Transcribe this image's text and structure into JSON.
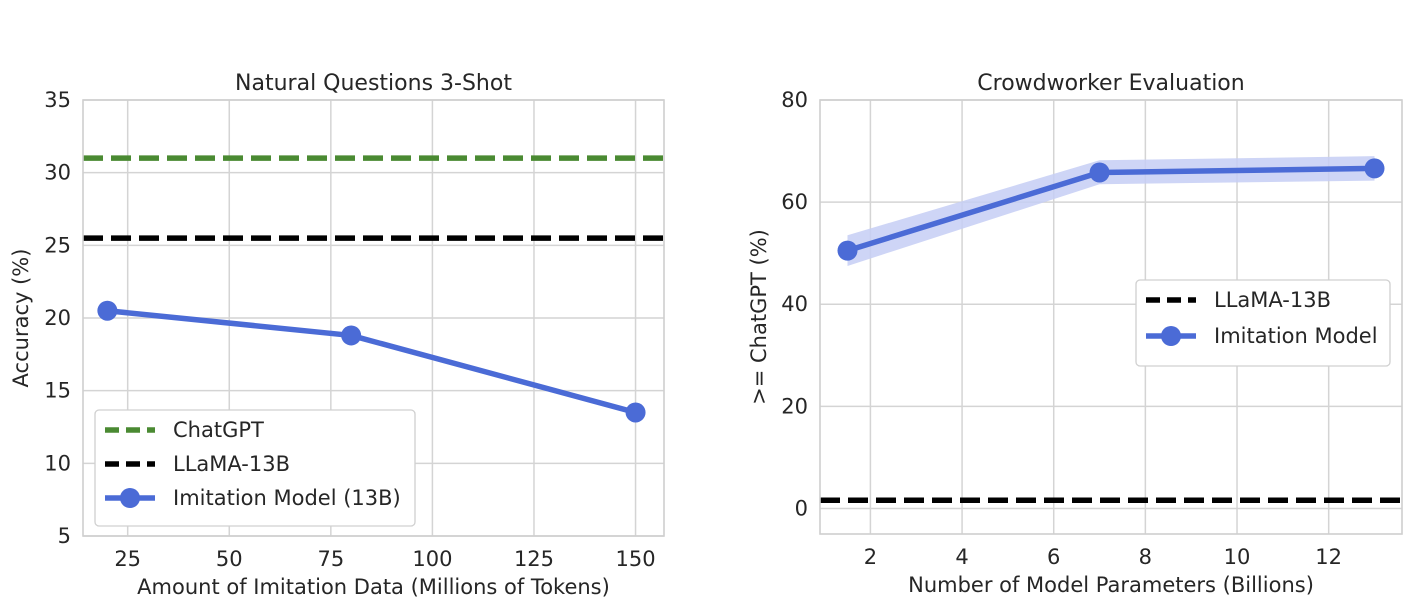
{
  "chart_data": [
    {
      "type": "line",
      "title": "Natural Questions 3-Shot",
      "xlabel": "Amount of Imitation Data (Millions of Tokens)",
      "ylabel": "Accuracy (%)",
      "xlim": [
        14,
        157
      ],
      "ylim": [
        5,
        35
      ],
      "xticks": [
        25,
        50,
        75,
        100,
        125,
        150
      ],
      "yticks": [
        5,
        10,
        15,
        20,
        25,
        30,
        35
      ],
      "grid": true,
      "legend_position": "lower-left",
      "series": [
        {
          "name": "ChatGPT",
          "style": "dashed",
          "color": "#4a8a32",
          "type": "hline",
          "y": 31
        },
        {
          "name": "LLaMA-13B",
          "style": "dashed",
          "color": "#000000",
          "type": "hline",
          "y": 25.5
        },
        {
          "name": "Imitation Model (13B)",
          "style": "solid-marker",
          "color": "#4b6bd6",
          "type": "line",
          "x": [
            20,
            80,
            150
          ],
          "y": [
            20.5,
            18.8,
            13.5
          ]
        }
      ]
    },
    {
      "type": "line",
      "title": "Crowdworker Evaluation",
      "xlabel": "Number of Model Parameters (Billions)",
      "ylabel": ">= ChatGPT (%)",
      "xlim": [
        0.9,
        13.6
      ],
      "ylim": [
        -5,
        80
      ],
      "xticks": [
        2,
        4,
        6,
        8,
        10,
        12
      ],
      "yticks": [
        0,
        20,
        40,
        60,
        80
      ],
      "grid": true,
      "legend_position": "center-right",
      "series": [
        {
          "name": "LLaMA-13B",
          "style": "dashed",
          "color": "#000000",
          "type": "hline",
          "y": 1.6
        },
        {
          "name": "Imitation Model",
          "style": "solid-marker",
          "color": "#4b6bd6",
          "type": "line",
          "x": [
            1.5,
            7,
            13
          ],
          "y": [
            50.5,
            65.8,
            66.6
          ],
          "band_lower": [
            47.5,
            63.5,
            64.2
          ],
          "band_upper": [
            53.5,
            68.2,
            69.0
          ],
          "band_color": "#c5cef5"
        }
      ]
    }
  ]
}
